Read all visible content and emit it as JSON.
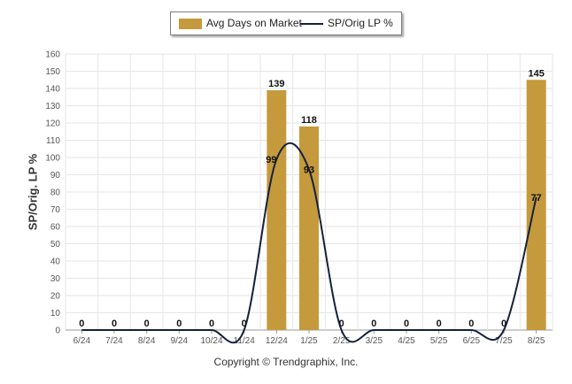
{
  "legend": {
    "bar_label": "Avg Days on Market",
    "line_label": "SP/Orig LP %"
  },
  "footer": {
    "copyright": "Copyright © Trendgraphix, Inc."
  },
  "colors": {
    "bar": "#c49a3c",
    "line": "#14213d",
    "grid": "#e6e6e6",
    "axis": "#999999",
    "text": "#555555"
  },
  "chart_data": {
    "type": "bar",
    "categories": [
      "6/24",
      "7/24",
      "8/24",
      "9/24",
      "10/24",
      "11/24",
      "12/24",
      "1/25",
      "2/25",
      "3/25",
      "4/25",
      "5/25",
      "6/25",
      "7/25",
      "8/25"
    ],
    "series": [
      {
        "name": "Avg Days on Market",
        "type": "bar",
        "values": [
          0,
          0,
          0,
          0,
          0,
          0,
          139,
          118,
          0,
          0,
          0,
          0,
          0,
          0,
          145
        ]
      },
      {
        "name": "SP/Orig LP %",
        "type": "line",
        "values": [
          0,
          0,
          0,
          0,
          0,
          0,
          99,
          93,
          0,
          0,
          0,
          0,
          0,
          0,
          77
        ]
      }
    ],
    "ylabel": "SP/Orig. LP %",
    "ylim": [
      0,
      160
    ],
    "yticks": [
      0,
      10,
      20,
      30,
      40,
      50,
      60,
      70,
      80,
      90,
      100,
      110,
      120,
      130,
      140,
      150,
      160
    ],
    "grid": true,
    "legend_position": "top"
  }
}
